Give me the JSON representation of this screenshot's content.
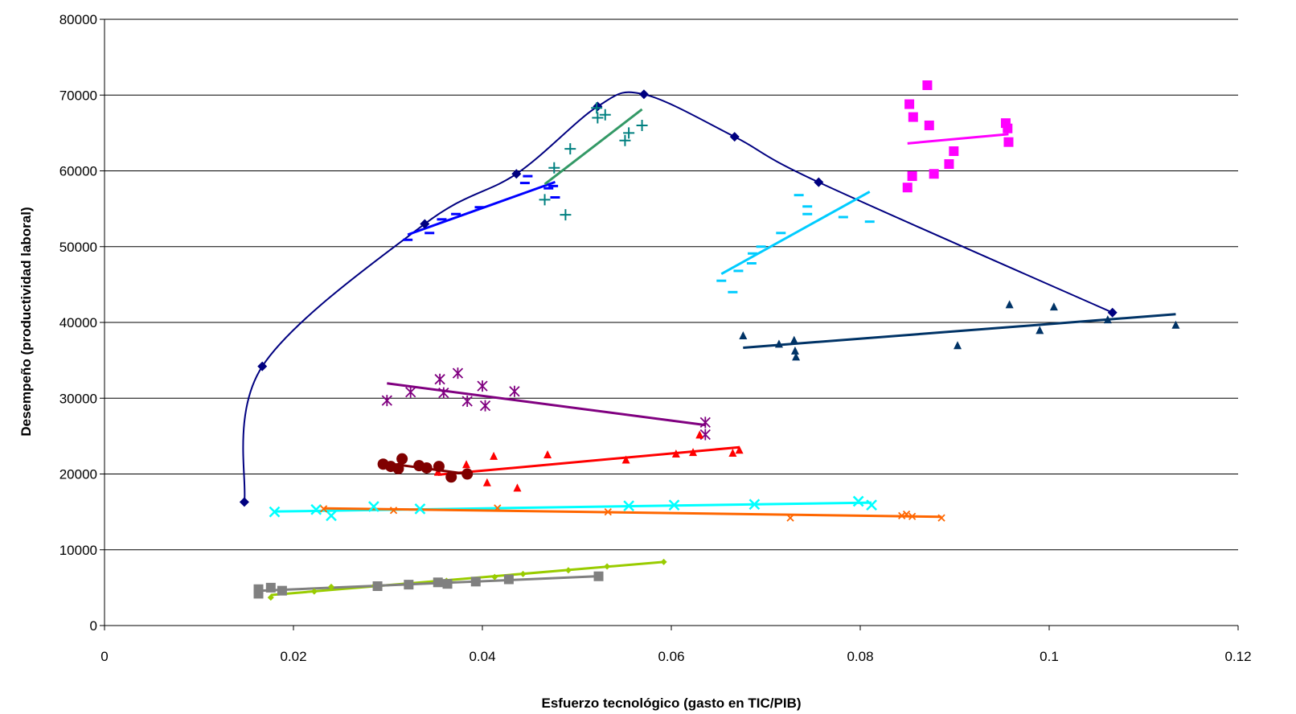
{
  "chart_data": {
    "type": "scatter",
    "title": "",
    "xlabel": "Esfuerzo tecnológico (gasto en TIC/PIB)",
    "ylabel": "Desempeño  (productividad laboral)",
    "xlim": [
      0,
      0.12
    ],
    "ylim": [
      0,
      80000
    ],
    "x_ticks": [
      "0",
      "0.02",
      "0.04",
      "0.06",
      "0.08",
      "0.1",
      "0.12"
    ],
    "y_ticks": [
      "0",
      "10000",
      "20000",
      "30000",
      "40000",
      "50000",
      "60000",
      "70000",
      "80000"
    ],
    "grid": "horizontal",
    "legend": "none",
    "series": [
      {
        "marker": "diamond",
        "color": "#000080",
        "trend": "smooth",
        "trend_color": "#000080",
        "points": [
          [
            0.0148,
            16300
          ],
          [
            0.0167,
            34200
          ],
          [
            0.0339,
            53000
          ],
          [
            0.0436,
            59600
          ],
          [
            0.0522,
            68500
          ],
          [
            0.0571,
            70100
          ],
          [
            0.0667,
            64500
          ],
          [
            0.0756,
            58500
          ],
          [
            0.1067,
            41300
          ]
        ]
      },
      {
        "marker": "dash",
        "color": "#0000FF",
        "trend": "linear",
        "trend_color": "#0000FF",
        "points": [
          [
            0.0321,
            50900
          ],
          [
            0.0344,
            51800
          ],
          [
            0.0357,
            53600
          ],
          [
            0.0372,
            54300
          ],
          [
            0.0397,
            55200
          ],
          [
            0.0445,
            58400
          ],
          [
            0.0448,
            59300
          ],
          [
            0.047,
            57700
          ],
          [
            0.0477,
            56500
          ],
          [
            0.0475,
            58000
          ]
        ]
      },
      {
        "marker": "plus",
        "color": "#008080",
        "trend": "linear",
        "trend_color": "#339966",
        "points": [
          [
            0.0466,
            56200
          ],
          [
            0.0476,
            60400
          ],
          [
            0.0488,
            54200
          ],
          [
            0.0493,
            62900
          ],
          [
            0.0521,
            68300
          ],
          [
            0.0522,
            67000
          ],
          [
            0.053,
            67400
          ],
          [
            0.0551,
            64000
          ],
          [
            0.0555,
            65000
          ],
          [
            0.0569,
            66000
          ]
        ]
      },
      {
        "marker": "square",
        "color": "#FF00FF",
        "trend": "linear",
        "trend_color": "#FF00FF",
        "points": [
          [
            0.085,
            57800
          ],
          [
            0.0855,
            59300
          ],
          [
            0.0852,
            68800
          ],
          [
            0.0856,
            67100
          ],
          [
            0.0871,
            71300
          ],
          [
            0.0873,
            66000
          ],
          [
            0.0878,
            59600
          ],
          [
            0.0894,
            60900
          ],
          [
            0.0899,
            62600
          ],
          [
            0.0954,
            66300
          ],
          [
            0.0956,
            65600
          ],
          [
            0.0957,
            63800
          ]
        ]
      },
      {
        "marker": "dash",
        "color": "#00CCFF",
        "trend": "linear",
        "trend_color": "#00CCFF",
        "points": [
          [
            0.0653,
            45500
          ],
          [
            0.0665,
            44000
          ],
          [
            0.0671,
            46800
          ],
          [
            0.0685,
            47800
          ],
          [
            0.0686,
            49100
          ],
          [
            0.0695,
            50000
          ],
          [
            0.0716,
            51800
          ],
          [
            0.0735,
            56800
          ],
          [
            0.0744,
            54300
          ],
          [
            0.0744,
            55300
          ],
          [
            0.0782,
            53900
          ],
          [
            0.081,
            53300
          ]
        ]
      },
      {
        "marker": "triangle",
        "color": "#003366",
        "trend": "linear",
        "trend_color": "#003366",
        "points": [
          [
            0.0676,
            38200
          ],
          [
            0.0714,
            37100
          ],
          [
            0.0731,
            36200
          ],
          [
            0.073,
            37600
          ],
          [
            0.0732,
            35400
          ],
          [
            0.0903,
            36900
          ],
          [
            0.0958,
            42300
          ],
          [
            0.099,
            38900
          ],
          [
            0.1005,
            42000
          ],
          [
            0.1062,
            40300
          ],
          [
            0.1134,
            39600
          ]
        ]
      },
      {
        "marker": "star",
        "color": "#800080",
        "trend": "linear",
        "trend_color": "#800080",
        "points": [
          [
            0.0299,
            29700
          ],
          [
            0.0324,
            30800
          ],
          [
            0.0355,
            32500
          ],
          [
            0.0359,
            30700
          ],
          [
            0.0374,
            33300
          ],
          [
            0.0384,
            29600
          ],
          [
            0.04,
            31600
          ],
          [
            0.0403,
            29000
          ],
          [
            0.0434,
            30900
          ],
          [
            0.0636,
            26800
          ],
          [
            0.0636,
            25200
          ]
        ]
      },
      {
        "marker": "triangle",
        "color": "#FF0000",
        "trend": "linear",
        "trend_color": "#FF0000",
        "points": [
          [
            0.0353,
            20200
          ],
          [
            0.0383,
            21200
          ],
          [
            0.0405,
            18800
          ],
          [
            0.0412,
            22300
          ],
          [
            0.0437,
            18100
          ],
          [
            0.0469,
            22500
          ],
          [
            0.0552,
            21800
          ],
          [
            0.0605,
            22600
          ],
          [
            0.0623,
            22800
          ],
          [
            0.063,
            25100
          ],
          [
            0.0665,
            22700
          ],
          [
            0.0672,
            23100
          ]
        ]
      },
      {
        "marker": "circle",
        "color": "#800000",
        "trend": "linear",
        "trend_color": "#800000",
        "points": [
          [
            0.0295,
            21300
          ],
          [
            0.0303,
            21000
          ],
          [
            0.0311,
            20700
          ],
          [
            0.0315,
            22000
          ],
          [
            0.0333,
            21100
          ],
          [
            0.0341,
            20800
          ],
          [
            0.0354,
            21000
          ],
          [
            0.0367,
            19600
          ],
          [
            0.0384,
            20000
          ]
        ]
      },
      {
        "marker": "x",
        "color": "#00FFFF",
        "trend": "linear",
        "trend_color": "#00FFFF",
        "points": [
          [
            0.018,
            15000
          ],
          [
            0.0224,
            15300
          ],
          [
            0.024,
            14500
          ],
          [
            0.0285,
            15700
          ],
          [
            0.0334,
            15400
          ],
          [
            0.0555,
            15800
          ],
          [
            0.0603,
            15900
          ],
          [
            0.0688,
            16000
          ],
          [
            0.0798,
            16400
          ],
          [
            0.0812,
            15900
          ]
        ]
      },
      {
        "marker": "x-small",
        "color": "#FF6600",
        "trend": "linear",
        "trend_color": "#FF6600",
        "points": [
          [
            0.0232,
            15400
          ],
          [
            0.0306,
            15200
          ],
          [
            0.0416,
            15500
          ],
          [
            0.0533,
            15000
          ],
          [
            0.0726,
            14200
          ],
          [
            0.0844,
            14500
          ],
          [
            0.0849,
            14700
          ],
          [
            0.0855,
            14400
          ],
          [
            0.0886,
            14200
          ]
        ]
      },
      {
        "marker": "diamond-small",
        "color": "#99CC00",
        "trend": "linear",
        "trend_color": "#99CC00",
        "points": [
          [
            0.0176,
            3700
          ],
          [
            0.0222,
            4500
          ],
          [
            0.024,
            5100
          ],
          [
            0.0286,
            5300
          ],
          [
            0.0322,
            5600
          ],
          [
            0.0362,
            5900
          ],
          [
            0.0413,
            6400
          ],
          [
            0.0443,
            6800
          ],
          [
            0.0491,
            7300
          ],
          [
            0.0532,
            7800
          ],
          [
            0.0592,
            8400
          ]
        ]
      },
      {
        "marker": "square",
        "color": "#808080",
        "trend": "linear",
        "trend_color": "#808080",
        "points": [
          [
            0.0163,
            4800
          ],
          [
            0.0163,
            4200
          ],
          [
            0.0176,
            5000
          ],
          [
            0.0188,
            4600
          ],
          [
            0.0289,
            5200
          ],
          [
            0.0322,
            5400
          ],
          [
            0.0353,
            5700
          ],
          [
            0.0363,
            5500
          ],
          [
            0.0393,
            5800
          ],
          [
            0.0428,
            6100
          ],
          [
            0.0523,
            6500
          ]
        ]
      }
    ]
  }
}
